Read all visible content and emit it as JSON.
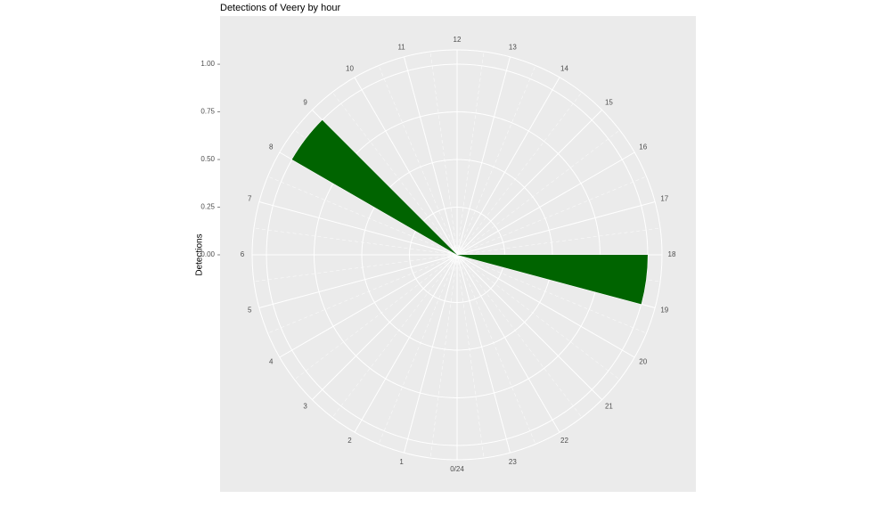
{
  "chart_data": {
    "type": "polar-bar",
    "title": "Detections of Veery by hour",
    "y_label": "Detections",
    "x": [
      0,
      1,
      2,
      3,
      4,
      5,
      6,
      7,
      8,
      9,
      10,
      11,
      12,
      13,
      14,
      15,
      16,
      17,
      18,
      19,
      20,
      21,
      22,
      23
    ],
    "values": [
      0,
      0,
      0,
      0,
      0,
      0,
      0,
      0,
      1,
      0,
      0,
      0,
      0,
      0,
      0,
      0,
      0,
      0,
      1,
      0,
      0,
      0,
      0,
      0
    ],
    "color": "#006400",
    "xlim": [
      0,
      24
    ],
    "xticks": [
      {
        "value": 0,
        "label": "0/24"
      },
      1,
      2,
      3,
      4,
      5,
      6,
      7,
      8,
      9,
      10,
      11,
      12,
      13,
      14,
      15,
      16,
      17,
      18,
      19,
      20,
      21,
      22,
      23
    ],
    "ylim": [
      0,
      1.075
    ],
    "yticks": [
      {
        "value": 0,
        "label": "0.00"
      },
      {
        "value": 0.25,
        "label": "0.25"
      },
      {
        "value": 0.5,
        "label": "0.50"
      },
      {
        "value": 0.75,
        "label": "0.75"
      },
      {
        "value": 1,
        "label": "1.00"
      }
    ],
    "grid": true
  }
}
